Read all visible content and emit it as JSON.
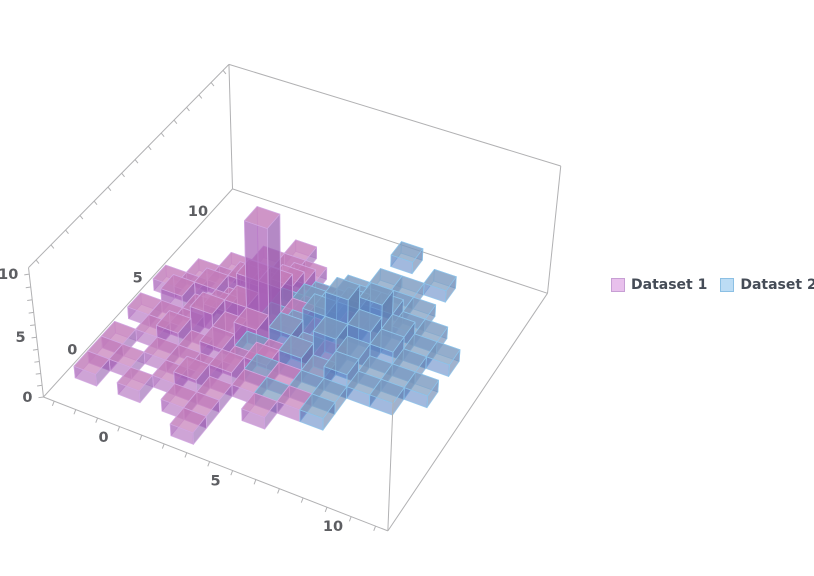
{
  "chart_data": {
    "type": "bar",
    "subtype": "3d-histogram",
    "title": "",
    "xlabel": "",
    "ylabel": "",
    "zlabel": "",
    "legend_position": "right-center",
    "axes": {
      "x": {
        "ticks": [
          0,
          5,
          10
        ],
        "range": [
          -2.5,
          12.5
        ],
        "minor_tick_step": 1
      },
      "y": {
        "ticks": [
          0,
          5,
          10
        ],
        "range": [
          -2.5,
          12.5
        ],
        "minor_tick_step": 1
      },
      "z": {
        "ticks": [
          0,
          5,
          10
        ],
        "range": [
          0,
          10.5
        ],
        "minor_tick_step": 1
      }
    },
    "grid_origin": {
      "x": -2,
      "y": -2
    },
    "cell_size": {
      "dx": 1,
      "dy": 1
    },
    "frame_color": "#b1b1b3",
    "tick_label_color": "#5d5e62",
    "legend_text_color": "#454c57",
    "series": [
      {
        "name": "Dataset 1",
        "colors": {
          "top": "#c67fba",
          "front": "#aa63b8",
          "side": "#9158ac",
          "edge": "#d2a8e2",
          "legend_fill": "#e8c0ec",
          "legend_border": "#c79fd4"
        },
        "heights": [
          [
            0,
            0,
            0,
            0,
            0,
            1,
            0,
            0,
            0,
            0,
            0,
            0,
            0
          ],
          [
            1,
            0,
            1,
            0,
            1,
            1,
            0,
            0,
            0,
            0,
            0,
            0,
            0
          ],
          [
            1,
            1,
            0,
            1,
            2,
            1,
            0,
            1,
            0,
            0,
            0,
            0,
            0
          ],
          [
            1,
            0,
            1,
            1,
            1,
            2,
            1,
            0,
            1,
            0,
            0,
            0,
            0
          ],
          [
            0,
            1,
            2,
            1,
            2,
            1,
            2,
            1,
            0,
            0,
            0,
            0,
            0
          ],
          [
            1,
            1,
            1,
            3,
            2,
            3,
            1,
            2,
            1,
            0,
            0,
            0,
            0
          ],
          [
            0,
            2,
            1,
            2,
            3,
            10,
            2,
            1,
            1,
            0,
            0,
            0,
            0
          ],
          [
            1,
            1,
            2,
            1,
            4,
            4,
            2,
            1,
            0,
            0,
            0,
            0,
            0
          ],
          [
            0,
            1,
            1,
            2,
            2,
            3,
            1,
            0,
            1,
            0,
            0,
            0,
            0
          ],
          [
            0,
            0,
            1,
            1,
            1,
            2,
            1,
            0,
            0,
            0,
            0,
            0,
            0
          ],
          [
            0,
            0,
            0,
            1,
            1,
            1,
            0,
            0,
            0,
            0,
            0,
            0,
            0
          ],
          [
            0,
            0,
            0,
            0,
            1,
            0,
            0,
            0,
            0,
            0,
            0,
            0,
            0
          ],
          [
            0,
            0,
            0,
            0,
            0,
            0,
            0,
            0,
            0,
            0,
            0,
            0,
            0
          ],
          [
            0,
            0,
            0,
            0,
            0,
            0,
            0,
            0,
            0,
            0,
            0,
            0,
            0
          ]
        ]
      },
      {
        "name": "Dataset 2",
        "colors": {
          "top": "#7e9dbf",
          "front": "#5f86c6",
          "side": "#5d7aa8",
          "edge": "#8ec6ec",
          "legend_fill": "#bcdcf4",
          "legend_border": "#8cc0e4"
        },
        "heights": [
          [
            0,
            0,
            0,
            0,
            0,
            0,
            0,
            0,
            0,
            0,
            0,
            0,
            0
          ],
          [
            0,
            0,
            0,
            0,
            0,
            0,
            0,
            0,
            0,
            0,
            0,
            0,
            0
          ],
          [
            0,
            0,
            0,
            0,
            0,
            0,
            0,
            0,
            0,
            0,
            0,
            0,
            0
          ],
          [
            0,
            0,
            0,
            0,
            0,
            0,
            0,
            1,
            0,
            1,
            0,
            0,
            0
          ],
          [
            0,
            0,
            0,
            0,
            0,
            0,
            1,
            0,
            1,
            1,
            0,
            0,
            0
          ],
          [
            0,
            0,
            0,
            0,
            0,
            1,
            0,
            2,
            1,
            2,
            1,
            1,
            0
          ],
          [
            0,
            0,
            0,
            0,
            0,
            0,
            2,
            1,
            3,
            2,
            1,
            1,
            1
          ],
          [
            0,
            0,
            0,
            0,
            0,
            1,
            1,
            3,
            5,
            3,
            2,
            1,
            0
          ],
          [
            0,
            0,
            0,
            0,
            0,
            1,
            2,
            2,
            3,
            4,
            2,
            1,
            1
          ],
          [
            0,
            0,
            0,
            0,
            0,
            0,
            1,
            1,
            2,
            2,
            1,
            1,
            0
          ],
          [
            0,
            0,
            0,
            0,
            0,
            0,
            0,
            1,
            1,
            1,
            1,
            0,
            0
          ],
          [
            0,
            0,
            0,
            0,
            0,
            0,
            0,
            0,
            1,
            1,
            0,
            0,
            0
          ],
          [
            0,
            0,
            0,
            0,
            0,
            0,
            0,
            0,
            0,
            0,
            1,
            0,
            0
          ],
          [
            0,
            0,
            0,
            0,
            0,
            0,
            0,
            0,
            1,
            0,
            0,
            0,
            0
          ]
        ]
      }
    ]
  }
}
